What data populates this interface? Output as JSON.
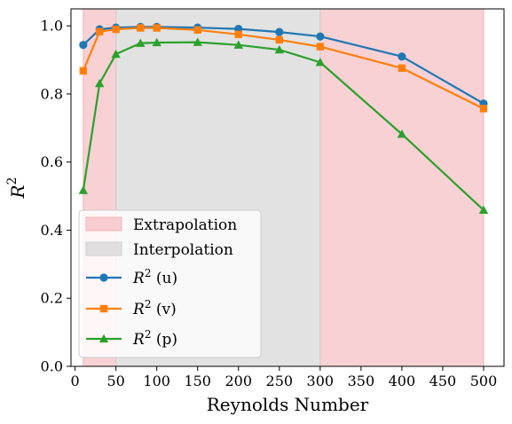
{
  "chart_data": {
    "type": "line",
    "xlabel": "Reynolds Number",
    "ylabel": "R",
    "ylabel_sup": "2",
    "xlim": [
      -5,
      525
    ],
    "ylim": [
      0,
      1.05
    ],
    "xticks": [
      0,
      50,
      100,
      150,
      200,
      250,
      300,
      350,
      400,
      450,
      500
    ],
    "yticks": [
      0.0,
      0.2,
      0.4,
      0.6,
      0.8,
      1.0
    ],
    "ytick_labels": [
      "0.0",
      "0.2",
      "0.4",
      "0.6",
      "0.8",
      "1.0"
    ],
    "grid": false,
    "legend_position": "lower-left",
    "regions": [
      {
        "name": "Extrapolation",
        "ranges": [
          [
            10,
            50
          ],
          [
            300,
            500
          ]
        ],
        "color": "#f2b3b8"
      },
      {
        "name": "Interpolation",
        "ranges": [
          [
            50,
            300
          ]
        ],
        "color": "#cfcfcf"
      }
    ],
    "x": [
      10,
      30,
      50,
      80,
      100,
      150,
      200,
      250,
      300,
      400,
      500
    ],
    "series": [
      {
        "name": "(u)",
        "prefix": "R",
        "sup": "2",
        "color": "#1f77b4",
        "marker": "circle",
        "values": [
          0.944,
          0.99,
          0.995,
          0.997,
          0.997,
          0.995,
          0.991,
          0.982,
          0.969,
          0.91,
          0.772
        ]
      },
      {
        "name": "(v)",
        "prefix": "R",
        "sup": "2",
        "color": "#ff7f0e",
        "marker": "square",
        "values": [
          0.868,
          0.983,
          0.99,
          0.994,
          0.994,
          0.988,
          0.975,
          0.959,
          0.939,
          0.876,
          0.757
        ]
      },
      {
        "name": "(p)",
        "prefix": "R",
        "sup": "2",
        "color": "#2ca02c",
        "marker": "triangle",
        "values": [
          0.517,
          0.831,
          0.917,
          0.949,
          0.951,
          0.952,
          0.944,
          0.93,
          0.893,
          0.682,
          0.459
        ]
      }
    ]
  }
}
